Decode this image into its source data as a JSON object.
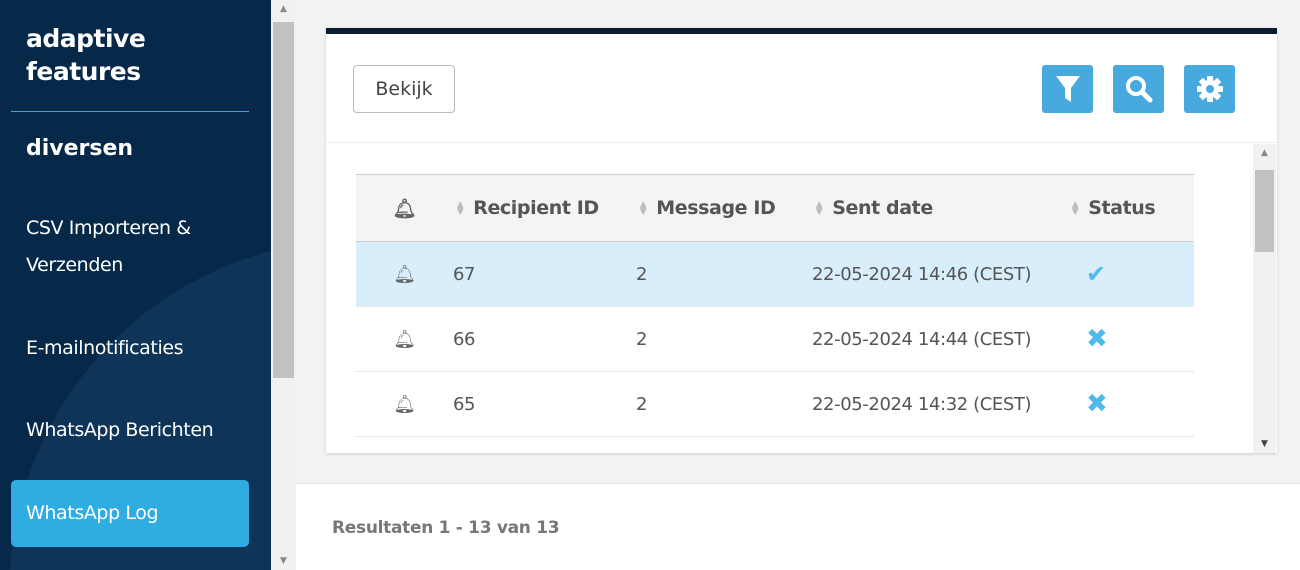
{
  "sidebar": {
    "brand_line1": "adaptive",
    "brand_line2": "features",
    "section": "diversen",
    "items": [
      {
        "label": "CSV Importeren &"
      },
      {
        "label": "Verzenden"
      },
      {
        "label": "E-mailnotificaties"
      },
      {
        "label": "WhatsApp Berichten"
      },
      {
        "label": "WhatsApp Log",
        "active": true
      }
    ]
  },
  "toolbar": {
    "view_label": "Bekijk",
    "icons": [
      "filter-icon",
      "search-icon",
      "gear-icon"
    ],
    "accent": "#47a9dd"
  },
  "table": {
    "columns": [
      "",
      "Recipient ID",
      "Message ID",
      "Sent date",
      "Status"
    ],
    "rows": [
      {
        "recipient_id": "67",
        "message_id": "2",
        "sent_date": "22-05-2024 14:46 (CEST)",
        "status": "success",
        "selected": true
      },
      {
        "recipient_id": "66",
        "message_id": "2",
        "sent_date": "22-05-2024 14:44 (CEST)",
        "status": "failed"
      },
      {
        "recipient_id": "65",
        "message_id": "2",
        "sent_date": "22-05-2024 14:32 (CEST)",
        "status": "failed"
      }
    ]
  },
  "footer": {
    "results": "Resultaten 1 - 13 van 13"
  }
}
